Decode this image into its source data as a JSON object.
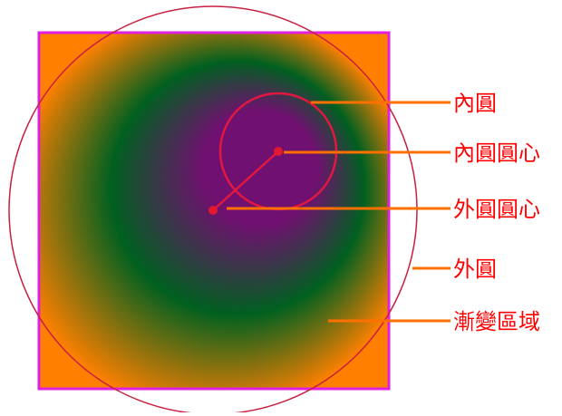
{
  "labels": {
    "inner_circle": "內圓",
    "inner_center": "內圓圓心",
    "outer_center": "外圓圓心",
    "outer_circle": "外圓",
    "gradient_area": "漸變區域"
  },
  "colors": {
    "background": "#ffffff",
    "square_border": "#e020e0",
    "outer_gradient": "#ff8000",
    "mid_gradient": "#006020",
    "inner_gradient": "#701070",
    "circle_stroke": "#c82040",
    "inner_circle_stroke": "#e01840",
    "center_dot": "#e01830",
    "leader_line": "#ff7000",
    "label_text": "#ff0000"
  }
}
